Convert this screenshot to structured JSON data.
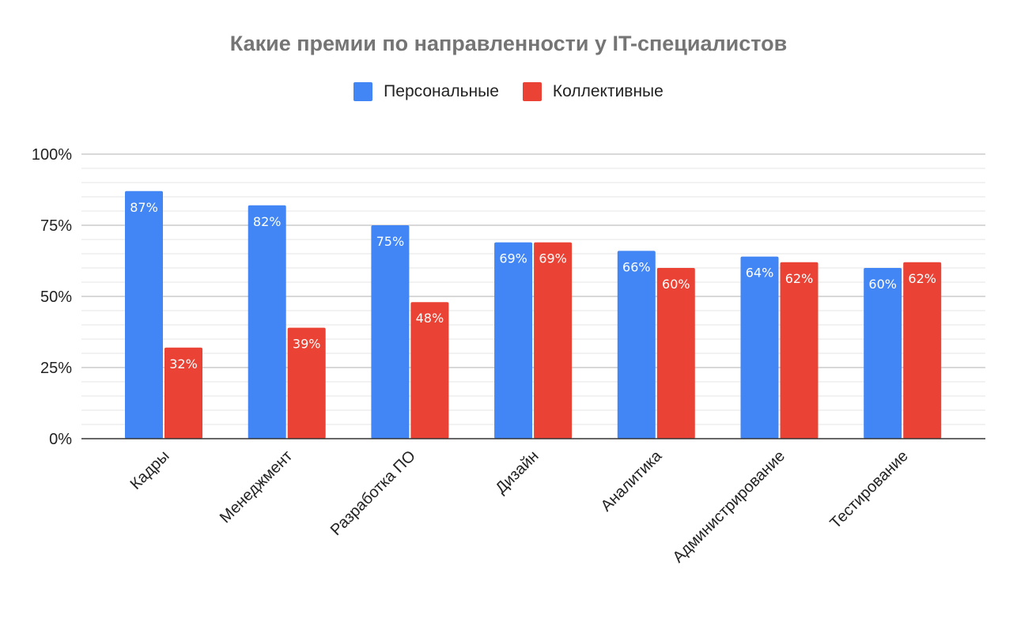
{
  "chart_data": {
    "type": "bar",
    "title": "Какие премии по направленности у IT-специалистов",
    "categories": [
      "Кадры",
      "Менеджмент",
      "Разработка ПО",
      "Дизайн",
      "Аналитика",
      "Администрирование",
      "Тестирование"
    ],
    "series": [
      {
        "name": "Персональные",
        "color": "#4285F4",
        "values": [
          87,
          82,
          75,
          69,
          66,
          64,
          60
        ]
      },
      {
        "name": "Коллективные",
        "color": "#EA4335",
        "values": [
          32,
          39,
          48,
          69,
          60,
          62,
          62
        ]
      }
    ],
    "ylim": [
      0,
      100
    ],
    "yticks": [
      "0%",
      "25%",
      "50%",
      "75%",
      "100%"
    ],
    "grid": true,
    "legend": "top",
    "xlabel": "",
    "ylabel": ""
  }
}
